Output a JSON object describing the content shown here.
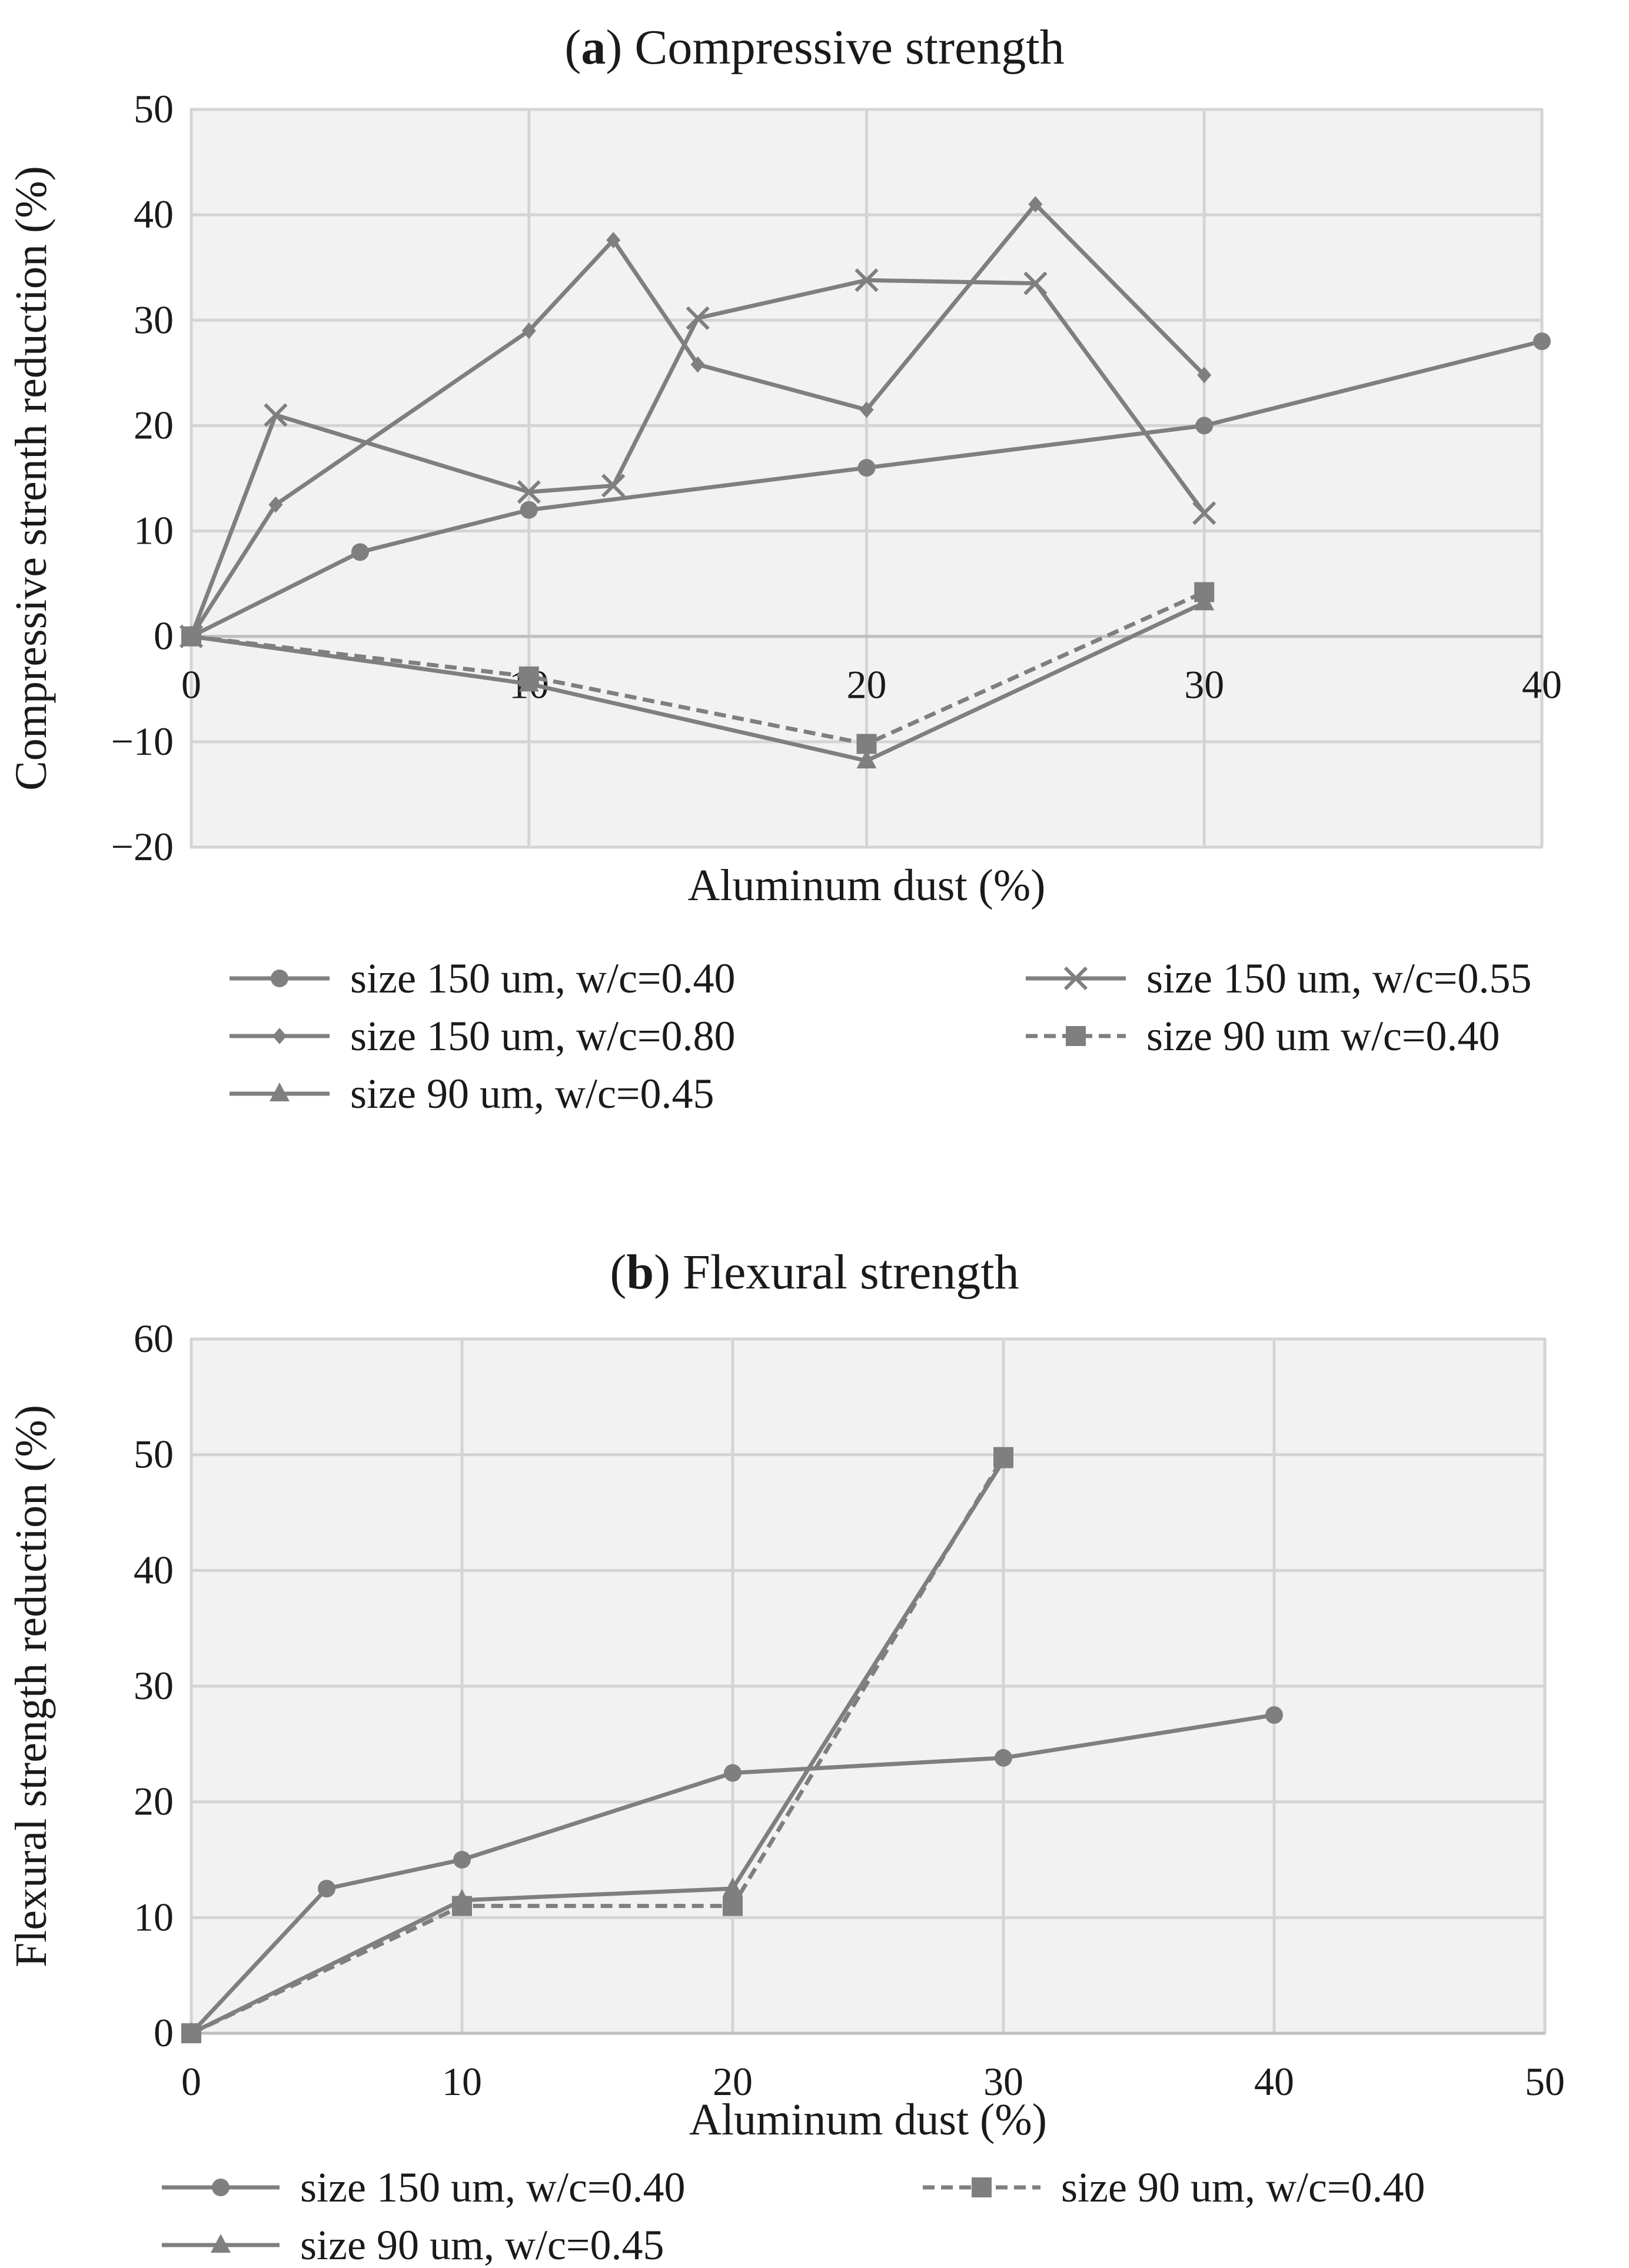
{
  "figure": {
    "panels": [
      {
        "letter": "a",
        "title": "Compressive strength"
      },
      {
        "letter": "b",
        "title": "Flexural strength"
      }
    ]
  },
  "chart_data": [
    {
      "type": "line",
      "panel": "a",
      "title": "(a) Compressive strength",
      "xlabel": "Aluminum dust (%)",
      "ylabel": "Compressive strenth reduction (%)",
      "xlim": [
        0,
        40
      ],
      "ylim": [
        -20,
        50
      ],
      "xticks": [
        0,
        10,
        20,
        30,
        40
      ],
      "yticks": [
        -20,
        -10,
        0,
        10,
        20,
        30,
        40,
        50
      ],
      "xtick_labels": [
        "0",
        "10",
        "20",
        "30",
        "40"
      ],
      "ytick_labels": [
        "−20",
        "−10",
        "0",
        "10",
        "20",
        "30",
        "40",
        "50"
      ],
      "grid": true,
      "legend_position": "bottom",
      "series": [
        {
          "name": "size 150 um, w/c=0.40",
          "marker": "circle",
          "dash": "solid",
          "color": "#7f7f7f",
          "x": [
            0,
            5,
            10,
            20,
            30,
            40
          ],
          "y": [
            0,
            8,
            12,
            16,
            20,
            28
          ]
        },
        {
          "name": "size 150 um, w/c=0.55",
          "marker": "x",
          "dash": "solid",
          "color": "#7f7f7f",
          "x": [
            0,
            2.5,
            10,
            12.5,
            15,
            20,
            25,
            30
          ],
          "y": [
            0,
            21,
            13.7,
            14.3,
            30.2,
            33.8,
            33.5,
            11.7
          ]
        },
        {
          "name": "size 150 um, w/c=0.80",
          "marker": "diamond",
          "dash": "solid",
          "color": "#7f7f7f",
          "x": [
            0,
            2.5,
            10,
            12.5,
            15,
            20,
            25,
            30
          ],
          "y": [
            0,
            12.5,
            29,
            37.6,
            25.8,
            21.5,
            41,
            24.8
          ]
        },
        {
          "name": "size 90 um w/c=0.40",
          "marker": "square",
          "dash": "dashed",
          "color": "#7f7f7f",
          "x": [
            0,
            10,
            20,
            30
          ],
          "y": [
            0,
            -3.8,
            -10.2,
            4.2
          ]
        },
        {
          "name": "size 90 um, w/c=0.45",
          "marker": "triangle",
          "dash": "solid",
          "color": "#7f7f7f",
          "x": [
            0,
            10,
            20,
            30
          ],
          "y": [
            0,
            -4.5,
            -11.8,
            3.2
          ]
        }
      ]
    },
    {
      "type": "line",
      "panel": "b",
      "title": "(b) Flexural strength",
      "xlabel": "Aluminum dust (%)",
      "ylabel": "Flexural strength reduction (%)",
      "xlim": [
        0,
        50
      ],
      "ylim": [
        0,
        60
      ],
      "xticks": [
        0,
        10,
        20,
        30,
        40,
        50
      ],
      "yticks": [
        0,
        10,
        20,
        30,
        40,
        50,
        60
      ],
      "xtick_labels": [
        "0",
        "10",
        "20",
        "30",
        "40",
        "50"
      ],
      "ytick_labels": [
        "0",
        "10",
        "20",
        "30",
        "40",
        "50",
        "60"
      ],
      "grid": true,
      "legend_position": "bottom",
      "series": [
        {
          "name": "size 150 um, w/c=0.40",
          "marker": "circle",
          "dash": "solid",
          "color": "#7f7f7f",
          "x": [
            0,
            5,
            10,
            20,
            30,
            40
          ],
          "y": [
            0,
            12.5,
            15,
            22.5,
            23.8,
            27.5
          ]
        },
        {
          "name": "size 90 um, w/c=0.40",
          "marker": "square",
          "dash": "dashed",
          "color": "#7f7f7f",
          "x": [
            0,
            10,
            20,
            30
          ],
          "y": [
            0,
            11,
            11,
            49.8
          ]
        },
        {
          "name": "size 90 um, w/c=0.45",
          "marker": "triangle",
          "dash": "solid",
          "color": "#7f7f7f",
          "x": [
            0,
            10,
            20,
            30
          ],
          "y": [
            0,
            11.5,
            12.5,
            49.5
          ]
        }
      ]
    }
  ]
}
